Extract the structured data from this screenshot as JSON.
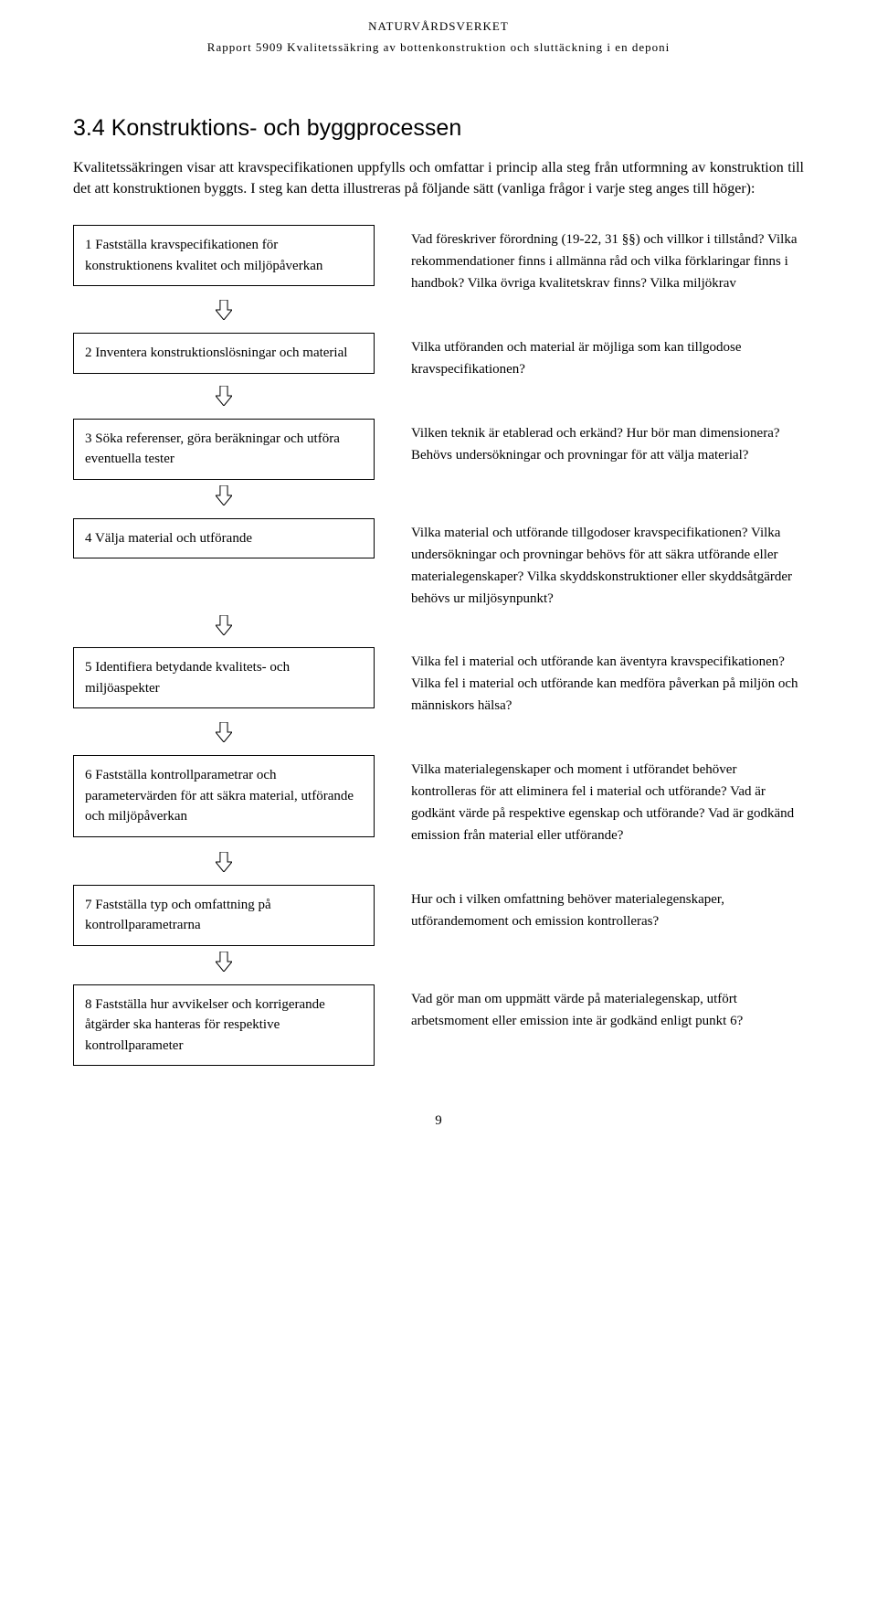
{
  "header": {
    "line1": "NATURVÅRDSVERKET",
    "line2": "Rapport 5909 Kvalitetssäkring av bottenkonstruktion och sluttäckning i en deponi"
  },
  "section": {
    "title": "3.4 Konstruktions- och byggprocessen",
    "intro": "Kvalitetssäkringen visar att kravspecifikationen uppfylls och omfattar i princip alla steg från utformning av konstruktion till det att konstruktionen byggts. I steg kan detta illustreras på följande sätt (vanliga frågor i varje steg anges till höger):"
  },
  "flowchart": {
    "type": "flowchart",
    "box_border_color": "#000000",
    "box_background": "#ffffff",
    "box_font_size": 15,
    "arrow": {
      "width": 18,
      "height": 22,
      "stroke": "#000000",
      "fill": "#ffffff"
    },
    "steps": [
      {
        "box": "1 Fastställa kravspecifikationen för konstruktionens kvalitet och miljöpåverkan",
        "desc": "Vad föreskriver förordning (19-22, 31 §§) och villkor i tillstånd? Vilka rekommendationer finns i allmänna råd och vilka förklaringar finns i handbok? Vilka övriga kvalitetskrav finns? Vilka miljökrav"
      },
      {
        "box": "2 Inventera konstruktionslösningar och material",
        "desc": "Vilka utföranden och material är möjliga som kan tillgodose kravspecifikationen?"
      },
      {
        "box": "3 Söka referenser, göra beräkningar och utföra eventuella tester",
        "desc": "Vilken teknik är etablerad och erkänd? Hur bör man dimensionera? Behövs undersökningar och provningar för att välja material?"
      },
      {
        "box": "4 Välja material och utförande",
        "desc": "Vilka material och utförande tillgodoser kravspecifikationen? Vilka undersökningar och provningar behövs för att säkra utförande eller materialegenskaper? Vilka skyddskonstruktioner eller skyddsåtgärder behövs ur miljösynpunkt?"
      },
      {
        "box": "5 Identifiera betydande kvalitets- och miljöaspekter",
        "desc": "Vilka fel i material och utförande kan äventyra kravspecifikationen?\nVilka fel i material och utförande kan medföra påverkan på miljön och människors hälsa?"
      },
      {
        "box": "6 Fastställa kontrollparametrar och parametervärden för att säkra material, utförande och miljöpåverkan",
        "desc": "Vilka materialegenskaper och moment i utförandet behöver kontrolleras för att eliminera fel i material och utförande? Vad är godkänt värde på respektive egenskap och utförande? Vad är godkänd emission från material eller utförande?"
      },
      {
        "box": "7 Fastställa typ och omfattning på kontrollparametrarna",
        "desc": "Hur och i vilken omfattning behöver materialegenskaper, utförandemoment och emission kontrolleras?"
      },
      {
        "box": "8 Fastställa hur avvikelser och korrigerande åtgärder ska hanteras för respektive kontrollparameter",
        "desc": "Vad gör man om uppmätt värde på materialegenskap, utfört arbetsmoment eller emission inte är godkänd enligt punkt 6?"
      }
    ]
  },
  "page_number": "9"
}
